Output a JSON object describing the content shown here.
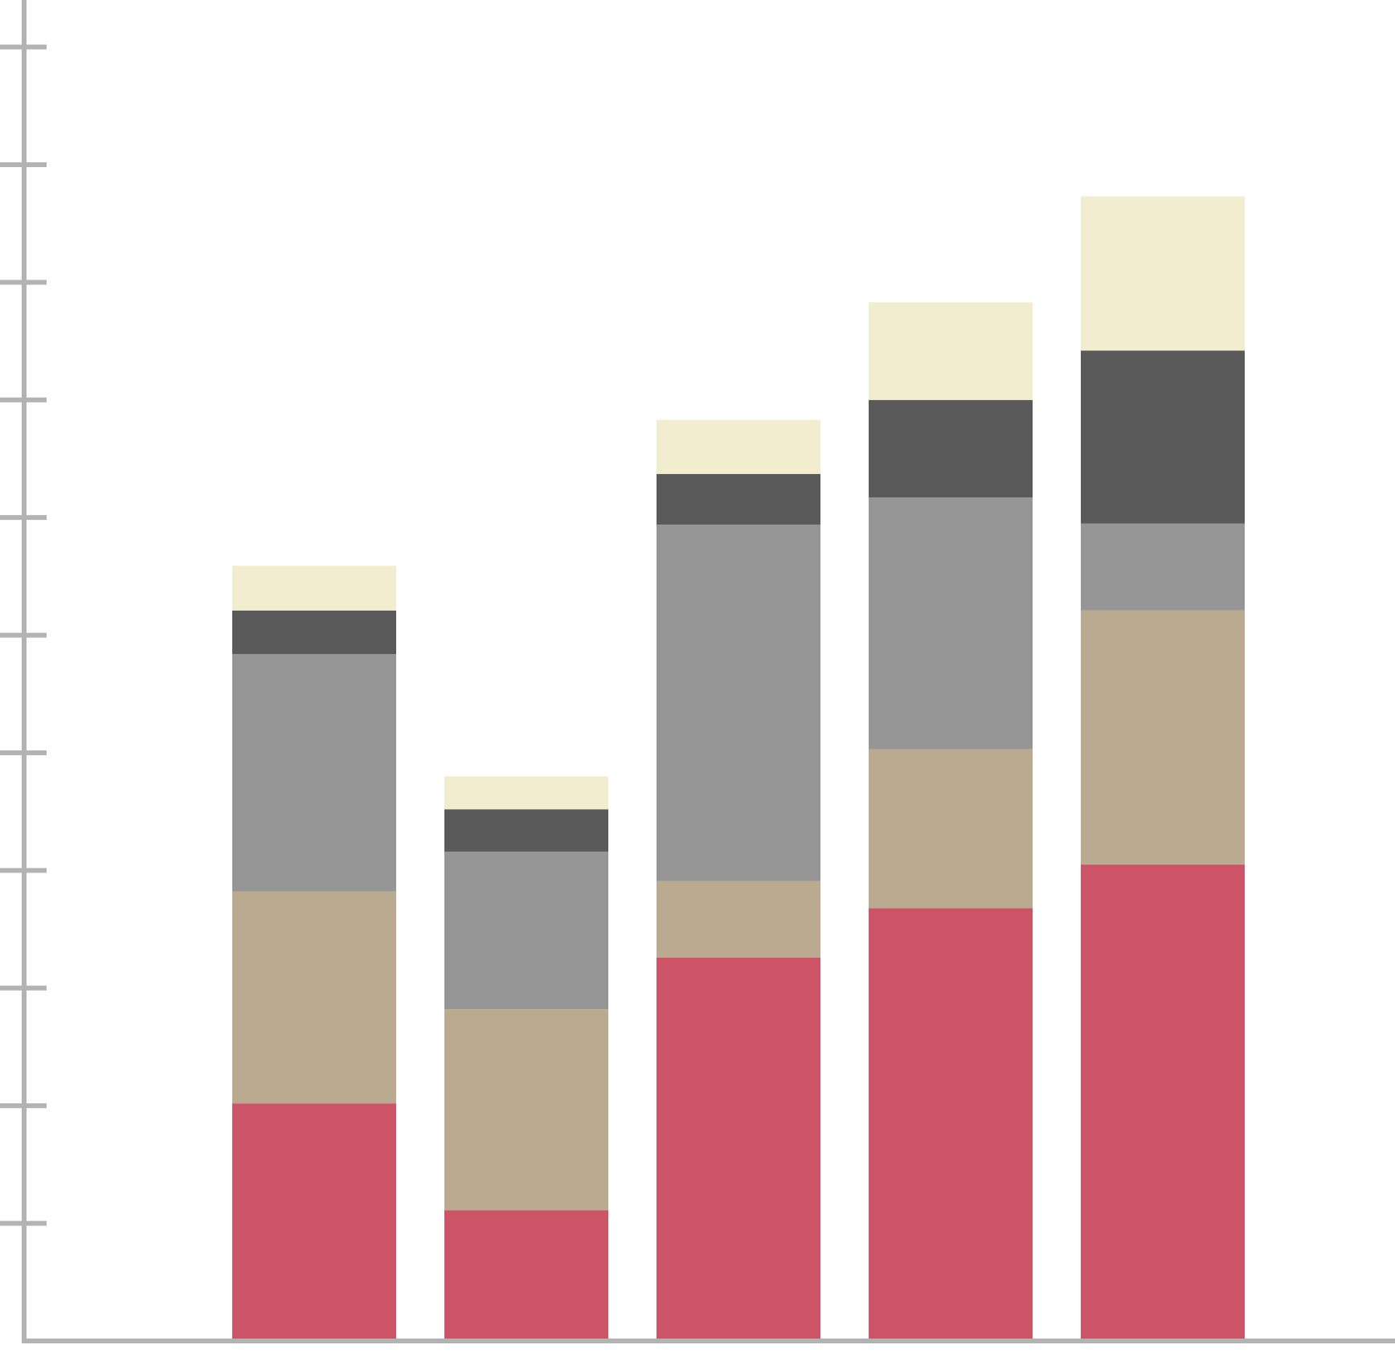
{
  "chart_data": {
    "type": "stacked-bar",
    "categories": [
      null,
      null,
      null,
      null,
      null
    ],
    "series": [
      {
        "color": "#cd5467",
        "values": [
          2.02,
          1.11,
          3.26,
          3.68,
          4.05
        ]
      },
      {
        "color": "#baab90",
        "values": [
          1.8,
          1.71,
          0.65,
          1.35,
          2.16
        ]
      },
      {
        "color": "#969696",
        "values": [
          2.02,
          1.34,
          3.03,
          2.14,
          0.74
        ]
      },
      {
        "color": "#5a5a5a",
        "values": [
          0.37,
          0.36,
          0.43,
          0.83,
          1.47
        ]
      },
      {
        "color": "#f3edd0",
        "values": [
          0.38,
          0.28,
          0.46,
          0.83,
          1.31
        ]
      }
    ],
    "ylim": [
      0,
      11.4
    ],
    "yticks": [
      1,
      2,
      3,
      4,
      5,
      6,
      7,
      8,
      9,
      10,
      11
    ],
    "axis_color": "#b3b3b3"
  }
}
